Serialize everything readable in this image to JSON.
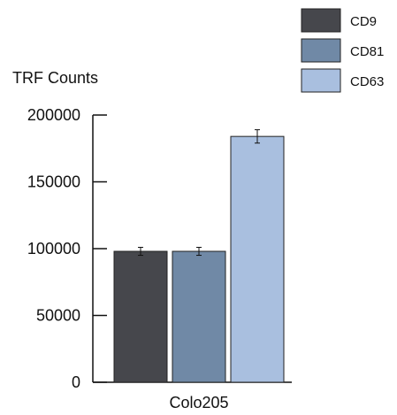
{
  "chart_data": {
    "type": "bar",
    "ylabel": "TRF Counts",
    "xlabel": "",
    "categories": [
      "Colo205"
    ],
    "series": [
      {
        "name": "CD9",
        "values": [
          98000
        ],
        "error": [
          3000
        ],
        "color": "#46474c"
      },
      {
        "name": "CD81",
        "values": [
          98000
        ],
        "error": [
          3000
        ],
        "color": "#7089a6"
      },
      {
        "name": "CD63",
        "values": [
          184000
        ],
        "error": [
          5000
        ],
        "color": "#a9bfdf"
      }
    ],
    "ylim": [
      0,
      200000
    ],
    "yticks": [
      0,
      50000,
      100000,
      150000,
      200000
    ],
    "ytick_labels": [
      "0",
      "50000",
      "100000",
      "150000",
      "200000"
    ],
    "grid": false,
    "legend_position": "top-right"
  }
}
